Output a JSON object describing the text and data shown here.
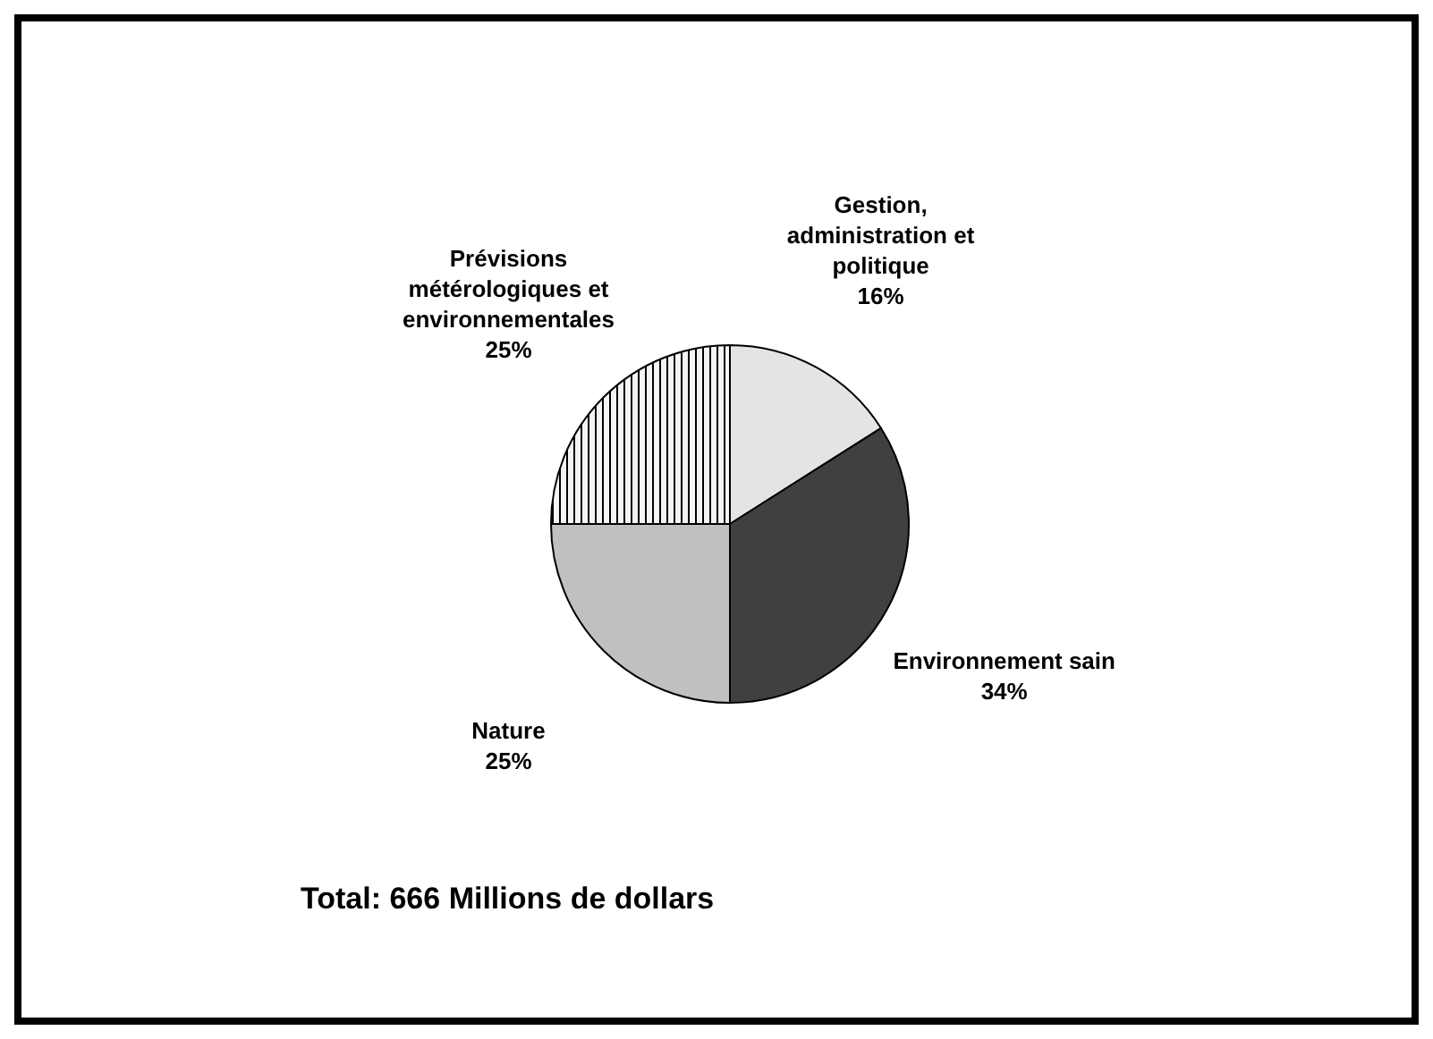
{
  "chart_data": {
    "type": "pie",
    "categories": [
      "Gestion, administration et politique",
      "Environnement sain",
      "Nature",
      "Prévisions métérologiques et environnementales"
    ],
    "values": [
      16,
      34,
      25,
      25
    ],
    "value_labels": [
      "16%",
      "34%",
      "25%",
      "25%"
    ],
    "colors": [
      "#e4e4e4",
      "#404040",
      "#c0c0c0",
      "#f4f4f4"
    ],
    "annotations": [
      "Total:  666 Millions de dollars"
    ]
  }
}
